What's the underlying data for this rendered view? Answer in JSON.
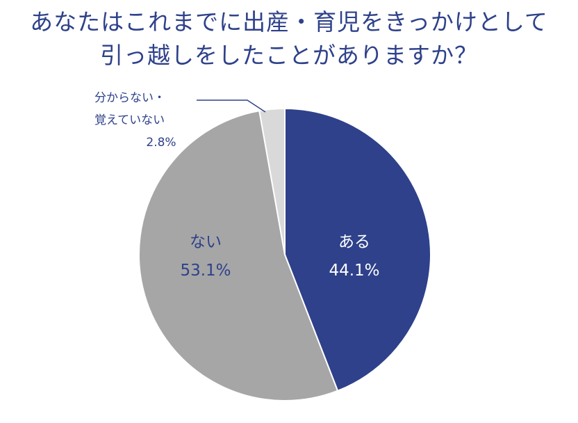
{
  "title": {
    "line1": "あなたはこれまでに出産・育児をきっかけとして",
    "line2": "引っ越しをしたことがありますか？"
  },
  "colors": {
    "title": "#2e418a",
    "label_dark": "#2e418a",
    "label_light": "#ffffff",
    "callout_line": "#2e418a"
  },
  "chart_data": {
    "type": "pie",
    "start": "12 o'clock",
    "direction": "clockwise",
    "slices": [
      {
        "label": "ある",
        "value": 44.1,
        "value_text": "44.1%",
        "color": "#2e418a"
      },
      {
        "label": "ない",
        "value": 53.1,
        "value_text": "53.1%",
        "color": "#a6a6a6"
      },
      {
        "label_lines": [
          "分からない・",
          "覚えていない"
        ],
        "value": 2.8,
        "value_text": "2.8%",
        "color": "#d9d9d9"
      }
    ]
  }
}
